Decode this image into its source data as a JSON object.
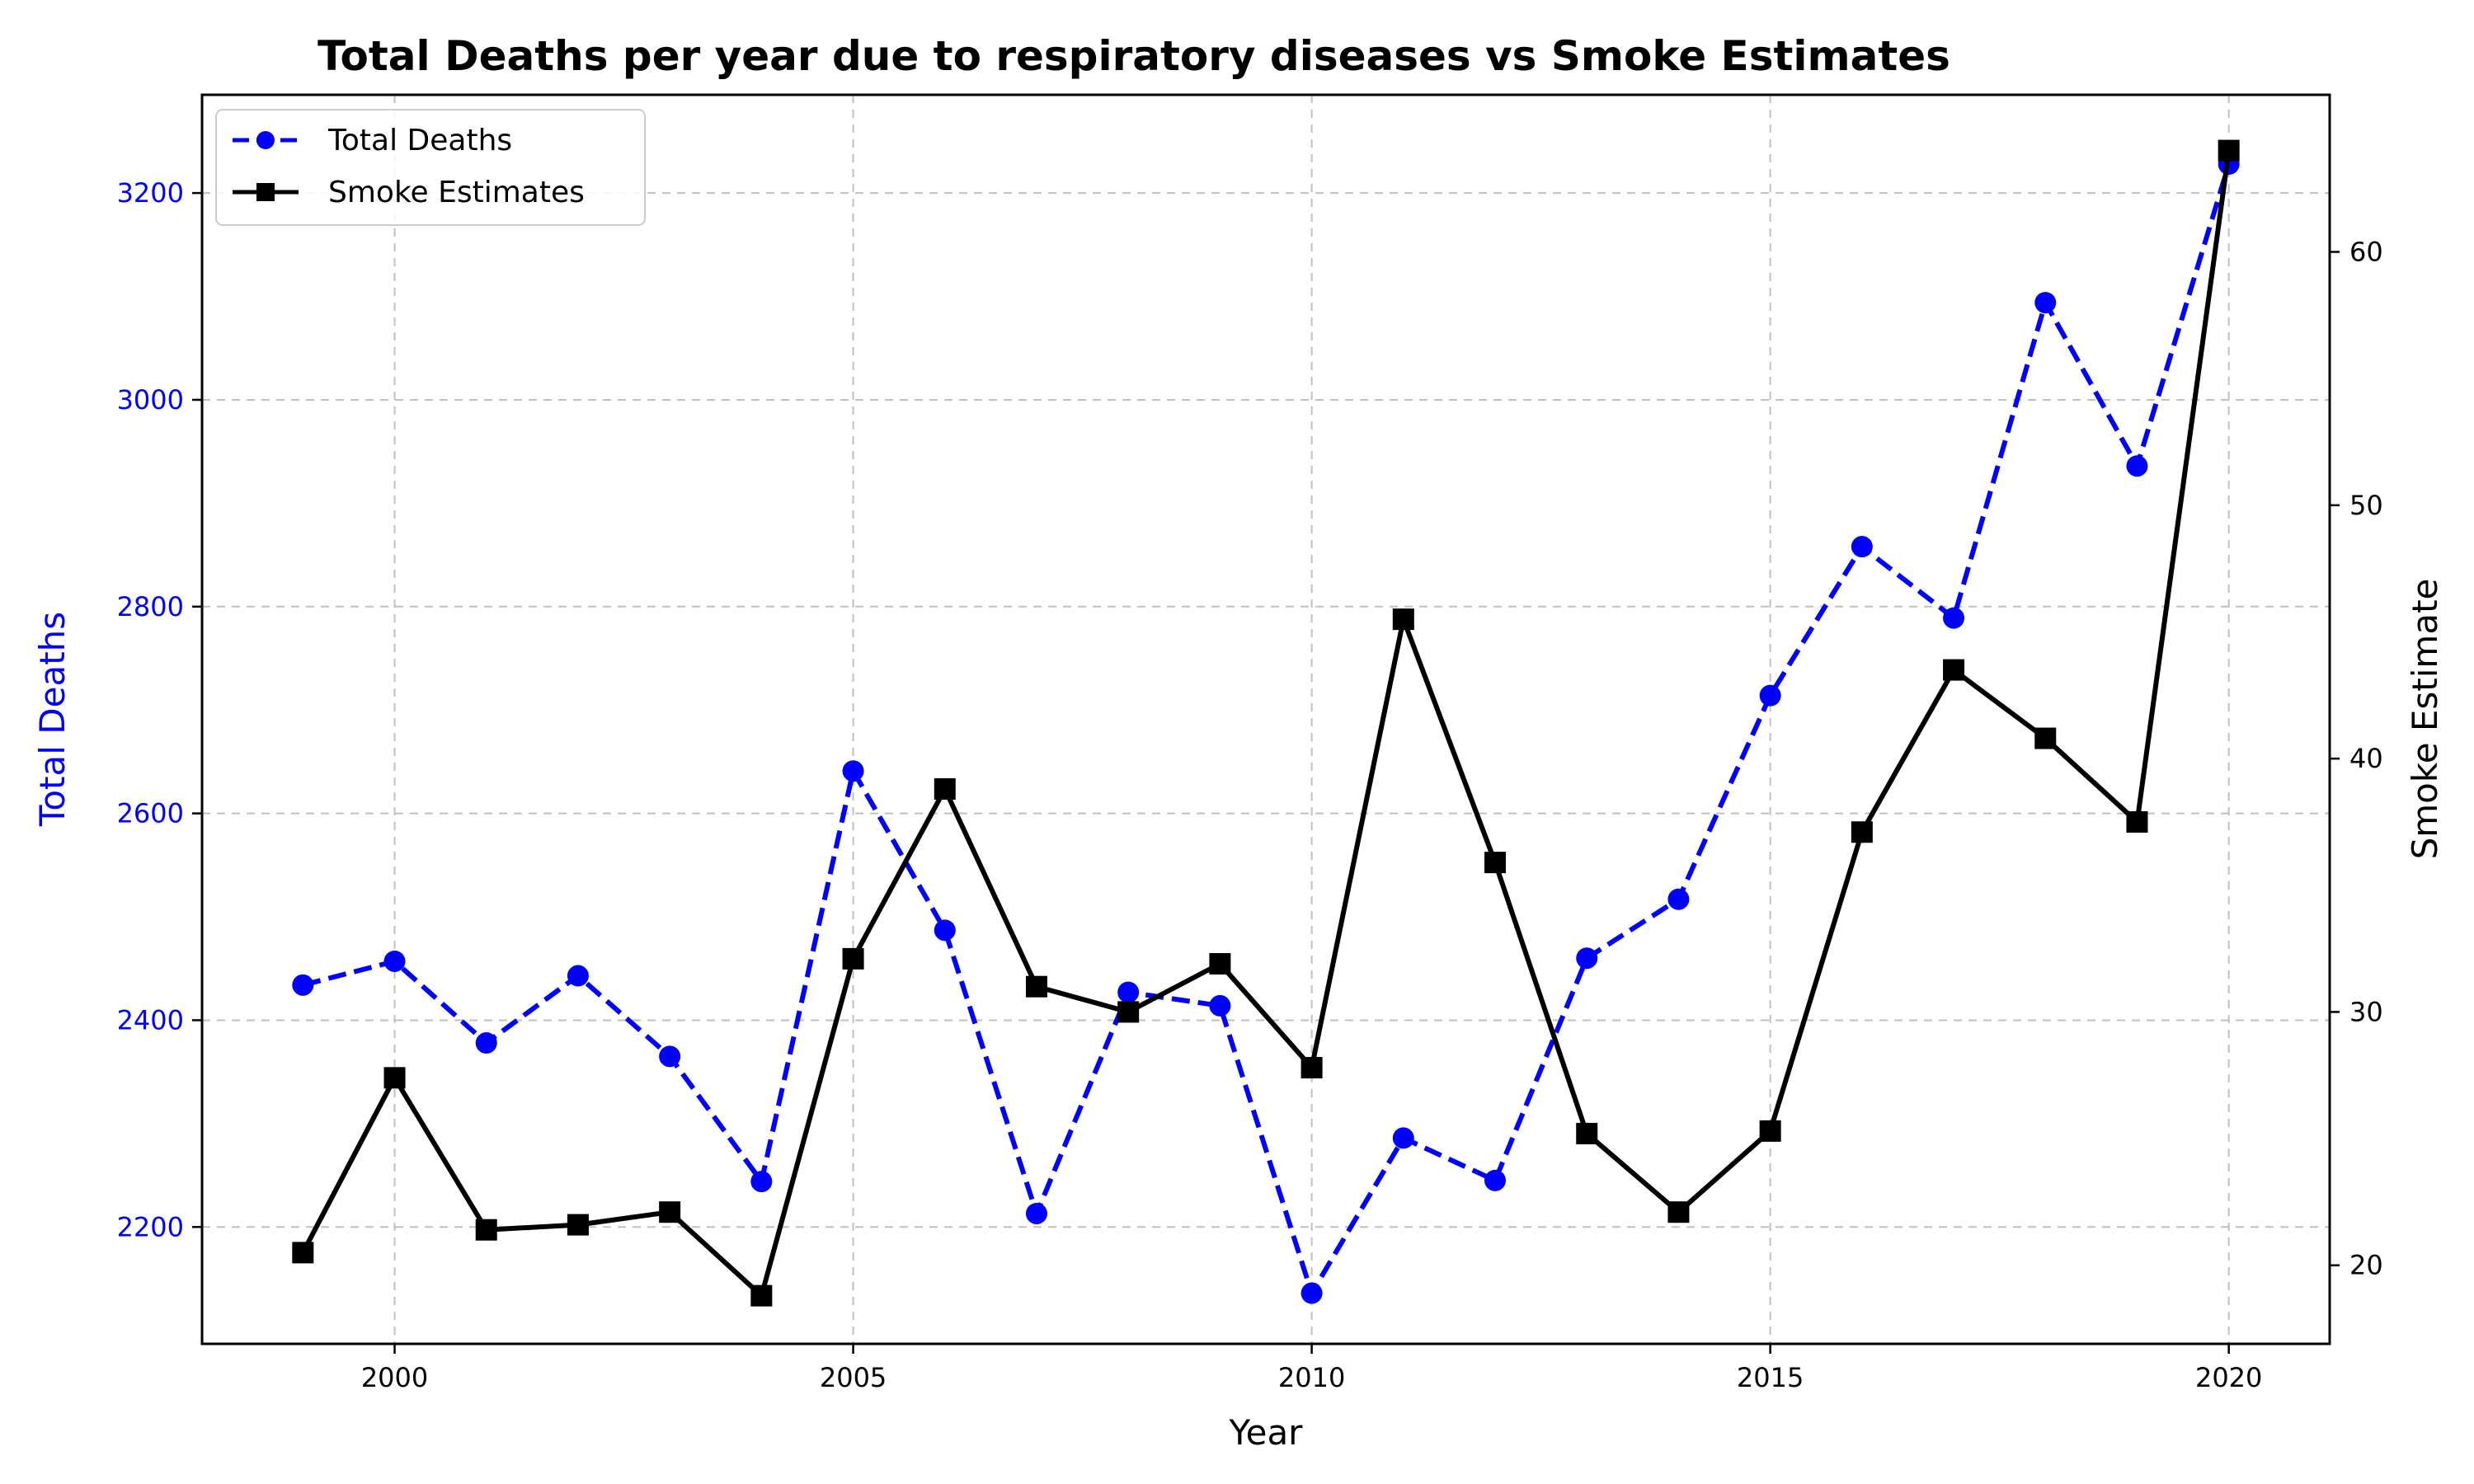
{
  "chart_data": {
    "type": "line",
    "title": "Total Deaths per year due to respiratory diseases vs Smoke Estimates",
    "xlabel": "Year",
    "ylabel": "Total Deaths",
    "y2label": "Smoke Estimate",
    "xlim": [
      1997.9,
      2021.1
    ],
    "ylim": [
      2087,
      3295
    ],
    "y2lim": [
      16.9,
      66.2
    ],
    "xticks": [
      2000,
      2005,
      2010,
      2015,
      2020
    ],
    "yticks": [
      2200,
      2400,
      2600,
      2800,
      3000,
      3200
    ],
    "y2ticks": [
      20,
      30,
      40,
      50,
      60
    ],
    "grid": true,
    "legend_position": "upper-left",
    "x": [
      1999,
      2000,
      2001,
      2002,
      2003,
      2004,
      2005,
      2006,
      2007,
      2008,
      2009,
      2010,
      2011,
      2012,
      2013,
      2014,
      2015,
      2016,
      2017,
      2018,
      2019,
      2020
    ],
    "series": [
      {
        "name": "Total Deaths",
        "axis": "left",
        "color": "#0000ff",
        "line_style": "dashed",
        "marker": "circle",
        "values": [
          2434,
          2457,
          2378,
          2443,
          2365,
          2244,
          2641,
          2487,
          2213,
          2427,
          2414,
          2136,
          2286,
          2245,
          2460,
          2517,
          2714,
          2858,
          2789,
          3094,
          2936,
          3228
        ]
      },
      {
        "name": "Smoke Estimates",
        "axis": "right",
        "color": "#000000",
        "line_style": "solid",
        "marker": "square",
        "values": [
          20.5,
          27.4,
          21.4,
          21.6,
          22.1,
          18.8,
          32.1,
          38.8,
          31.0,
          30.0,
          31.9,
          27.8,
          45.5,
          35.9,
          25.2,
          22.1,
          25.3,
          37.1,
          43.5,
          40.8,
          37.5,
          64.0
        ]
      }
    ]
  }
}
